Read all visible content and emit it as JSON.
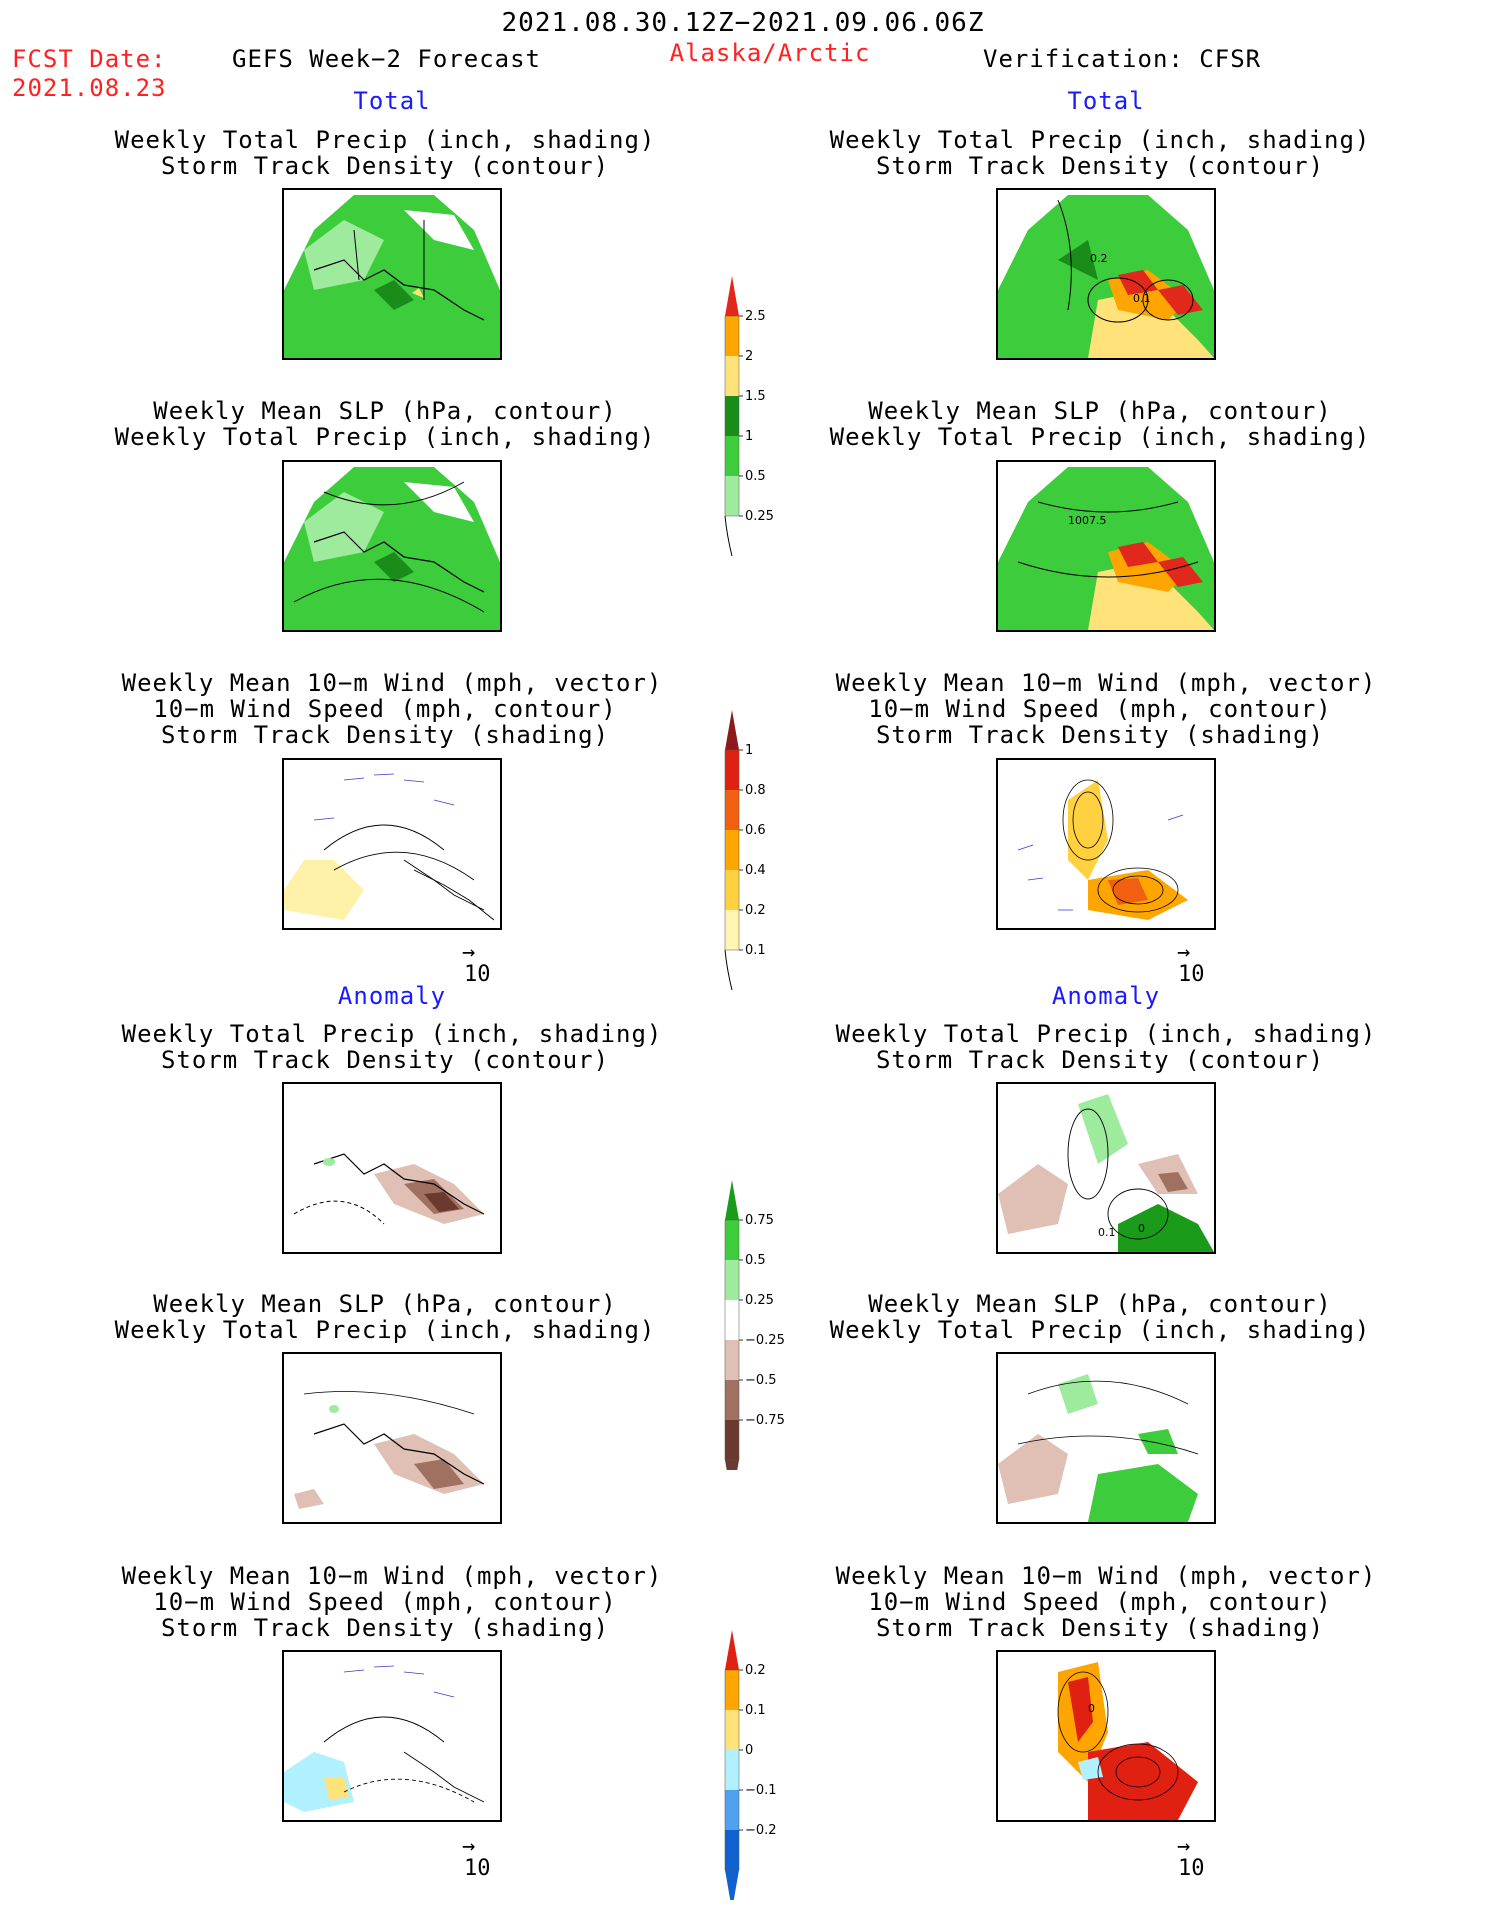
{
  "header": {
    "period": "2021.08.30.12Z−2021.09.06.06Z",
    "fcst_label": "FCST Date:",
    "fcst_date": "2021.08.23",
    "model": "GEFS Week−2 Forecast",
    "region": "Alaska/Arctic",
    "verification": "Verification: CFSR"
  },
  "sections": {
    "total": "Total",
    "anomaly": "Anomaly"
  },
  "titles": {
    "precip_track": [
      "Weekly Total Precip (inch, shading)",
      "Storm Track Density (contour)"
    ],
    "slp_precip": [
      "Weekly Mean SLP (hPa, contour)",
      "Weekly Total Precip (inch, shading)"
    ],
    "wind_track": [
      "Weekly Mean 10−m Wind (mph, vector)",
      "10−m Wind Speed (mph, contour)",
      "Storm Track Density (shading)"
    ]
  },
  "panel_labels": {
    "fcst_total_track": "",
    "obs_total_track_a": "0.2",
    "obs_total_track_b": "0.1",
    "obs_total_slp": "1007.5",
    "obs_anom_track_a": "0.1",
    "obs_anom_track_b": "0",
    "obs_anom_wind_a": "0"
  },
  "vector_ref": "10",
  "colorbars": {
    "precip_total": {
      "labels": [
        "2.5",
        "2",
        "1.5",
        "1",
        "0.5",
        "0.25"
      ],
      "colors": [
        "#e0281c",
        "#ffa500",
        "#ffe27a",
        "#1a8c1a",
        "#3ccc3c",
        "#9eeb9e"
      ]
    },
    "track_total": {
      "labels": [
        "1",
        "0.8",
        "0.6",
        "0.4",
        "0.2",
        "0.1"
      ],
      "colors": [
        "#8b1a1a",
        "#e02010",
        "#f06010",
        "#ffa500",
        "#ffd040",
        "#fff5b0"
      ]
    },
    "precip_anom": {
      "labels": [
        "0.75",
        "0.5",
        "0.25",
        "−0.25",
        "−0.5",
        "−0.75"
      ],
      "colors": [
        "#1a9c1a",
        "#3ccc3c",
        "#9eeb9e",
        "#ffffff",
        "#e0c0b4",
        "#a07060",
        "#6a3a30"
      ]
    },
    "track_anom": {
      "labels": [
        "0.2",
        "0.1",
        "0",
        "−0.1",
        "−0.2"
      ],
      "colors": [
        "#e02010",
        "#ffa500",
        "#ffe27a",
        "#b0f0ff",
        "#50a0f0",
        "#1060d0"
      ]
    }
  }
}
